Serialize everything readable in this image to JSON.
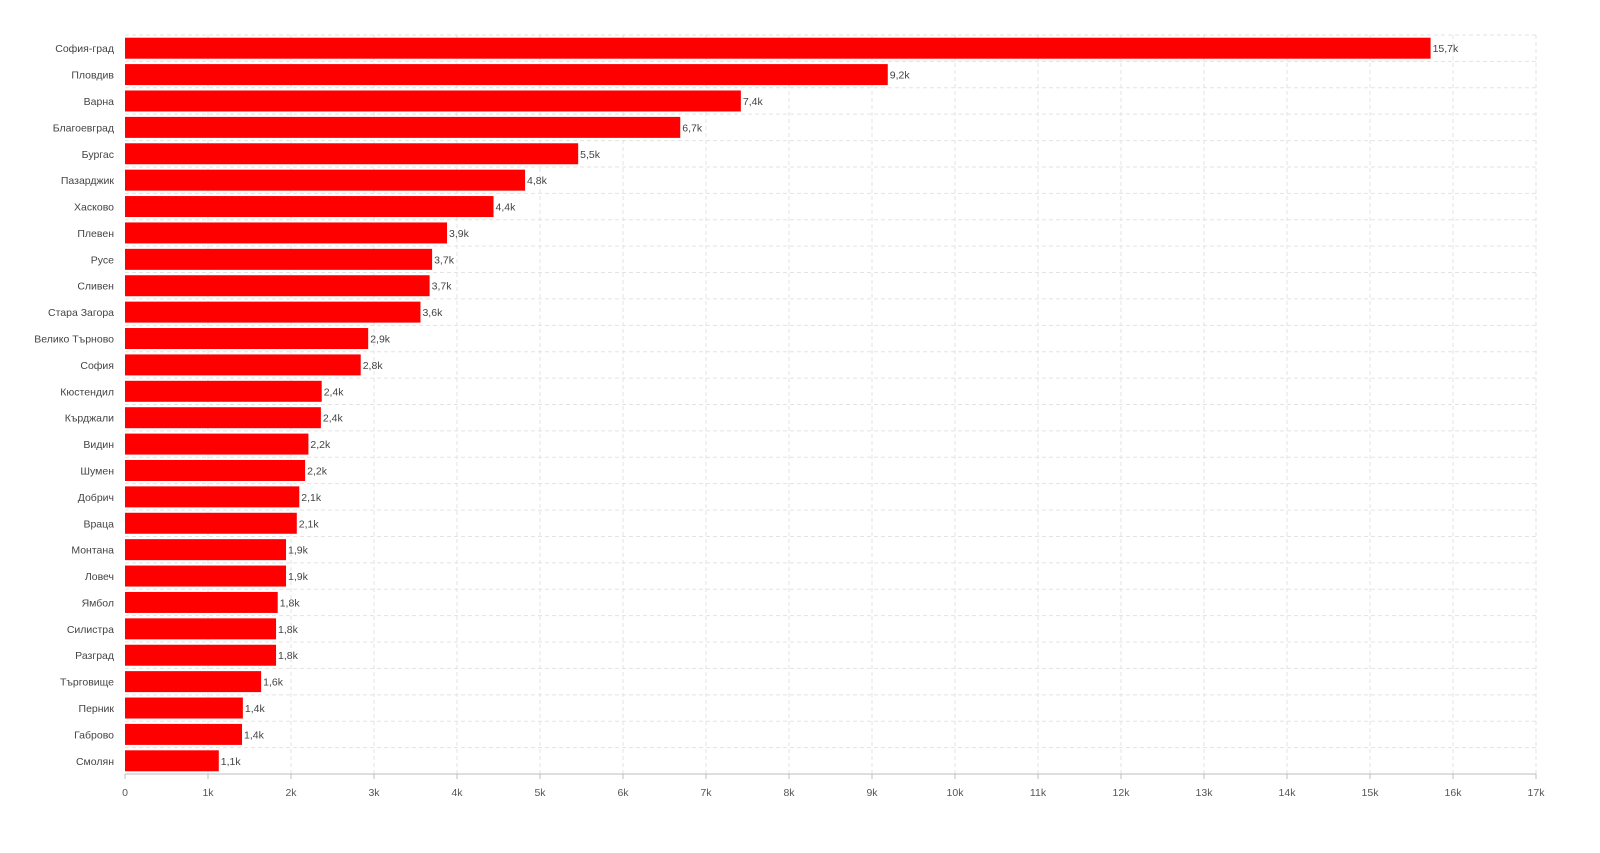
{
  "chart_data": {
    "type": "bar",
    "orientation": "horizontal",
    "title": "",
    "xlabel": "",
    "ylabel": "",
    "categories": [
      "София-град",
      "Пловдив",
      "Варна",
      "Благоевград",
      "Бургас",
      "Пазарджик",
      "Хасково",
      "Плевен",
      "Русе",
      "Сливен",
      "Стара Загора",
      "Велико Търново",
      "София",
      "Кюстендил",
      "Кърджали",
      "Видин",
      "Шумен",
      "Добрич",
      "Враца",
      "Монтана",
      "Ловеч",
      "Ямбол",
      "Силистра",
      "Разград",
      "Търговище",
      "Перник",
      "Габрово",
      "Смолян"
    ],
    "values": [
      15730,
      9190,
      7420,
      6690,
      5460,
      4820,
      4440,
      3880,
      3700,
      3670,
      3560,
      2930,
      2840,
      2370,
      2360,
      2210,
      2170,
      2100,
      2070,
      1940,
      1940,
      1840,
      1820,
      1820,
      1640,
      1420,
      1410,
      1130
    ],
    "value_labels": [
      "15,7k",
      "9,2k",
      "7,4k",
      "6,7k",
      "5,5k",
      "4,8k",
      "4,4k",
      "3,9k",
      "3,7k",
      "3,7k",
      "3,6k",
      "2,9k",
      "2,8k",
      "2,4k",
      "2,4k",
      "2,2k",
      "2,2k",
      "2,1k",
      "2,1k",
      "1,9k",
      "1,9k",
      "1,8k",
      "1,8k",
      "1,8k",
      "1,6k",
      "1,4k",
      "1,4k",
      "1,1k"
    ],
    "xlim": [
      0,
      17000
    ],
    "x_ticks": [
      0,
      1000,
      2000,
      3000,
      4000,
      5000,
      6000,
      7000,
      8000,
      9000,
      10000,
      11000,
      12000,
      13000,
      14000,
      15000,
      16000,
      17000
    ],
    "x_tick_labels": [
      "0",
      "1k",
      "2k",
      "3k",
      "4k",
      "5k",
      "6k",
      "7k",
      "8k",
      "9k",
      "10k",
      "11k",
      "12k",
      "13k",
      "14k",
      "15k",
      "16k",
      "17k"
    ],
    "grid": true,
    "bar_color": "#ff0000"
  }
}
